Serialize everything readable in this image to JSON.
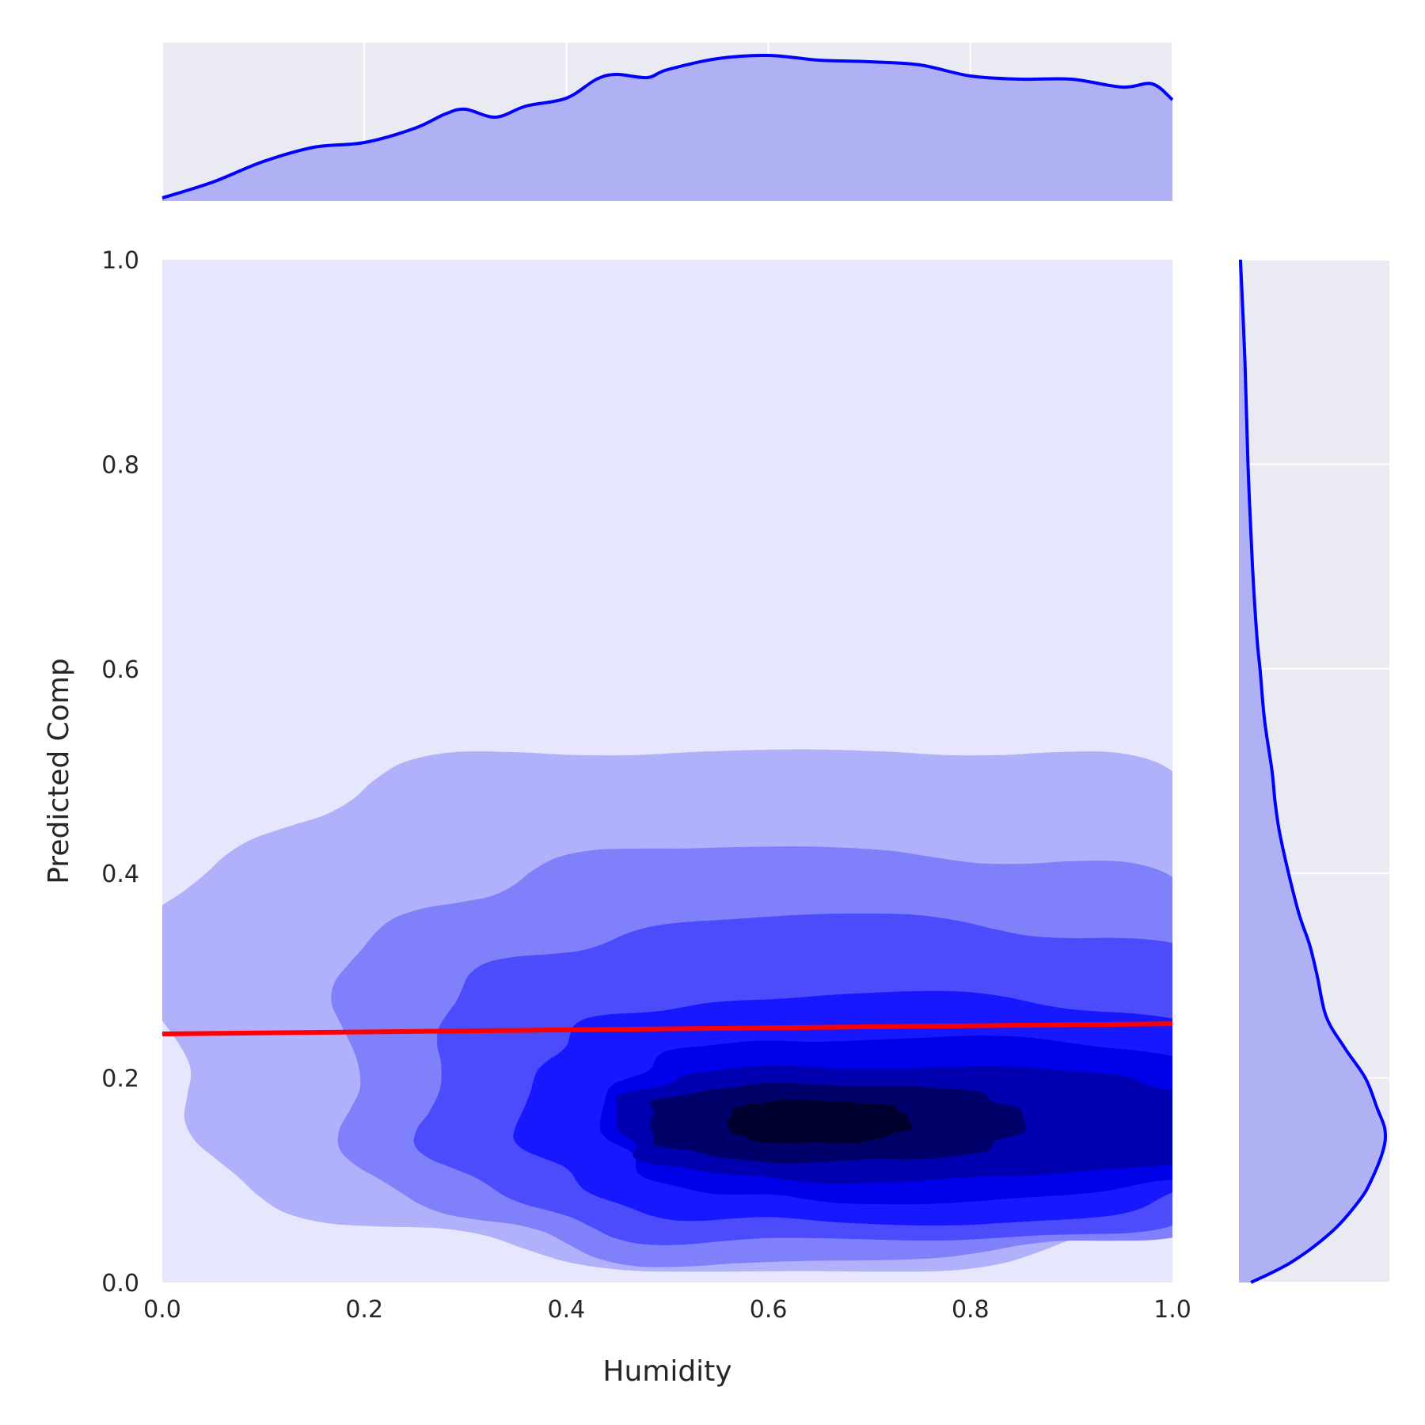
{
  "chart_data": {
    "type": "kde-jointplot",
    "xlabel": "Humidity",
    "ylabel": "Predicted Comp",
    "xlim": [
      0.0,
      1.0
    ],
    "ylim": [
      0.0,
      1.0
    ],
    "x_ticks": [
      "0.0",
      "0.2",
      "0.4",
      "0.6",
      "0.8",
      "1.0"
    ],
    "y_ticks": [
      "0.0",
      "0.2",
      "0.4",
      "0.6",
      "0.8",
      "1.0"
    ],
    "grid": true,
    "colors": {
      "background": "#eaeaf2",
      "kde_lowest": "#e6e6fc",
      "line": "#0000ff",
      "regression": "#ff0000",
      "marginal_fill": "#b0b0f4",
      "levels": [
        "#b0b0fb",
        "#8080fb",
        "#4c4cfd",
        "#1818ff",
        "#0000e8",
        "#0000b0",
        "#00006a",
        "#000030"
      ]
    },
    "regression_line": {
      "x": [
        0.0,
        1.0
      ],
      "y": [
        0.243,
        0.253
      ]
    },
    "density_peak": {
      "x": 0.62,
      "y": 0.155
    },
    "contour_levels": [
      {
        "center": [
          0.63,
          0.27
        ],
        "rx": [
          0.64,
          0.58
        ],
        "ry": [
          0.255,
          0.255
        ]
      },
      {
        "center": [
          0.64,
          0.22
        ],
        "rx": [
          0.47,
          0.51
        ],
        "ry": [
          0.2,
          0.205
        ]
      },
      {
        "center": [
          0.66,
          0.19
        ],
        "rx": [
          0.4,
          0.49
        ],
        "ry": [
          0.152,
          0.165
        ]
      },
      {
        "center": [
          0.67,
          0.17
        ],
        "rx": [
          0.31,
          0.46
        ],
        "ry": [
          0.113,
          0.11
        ]
      },
      {
        "center": [
          0.68,
          0.162
        ],
        "rx": [
          0.24,
          0.44
        ],
        "ry": [
          0.082,
          0.077
        ]
      },
      {
        "center": [
          0.68,
          0.158
        ],
        "rx": [
          0.23,
          0.37
        ],
        "ry": [
          0.058,
          0.054
        ]
      },
      {
        "center": [
          0.65,
          0.158
        ],
        "rx": [
          0.17,
          0.2
        ],
        "ry": [
          0.04,
          0.036
        ]
      },
      {
        "center": [
          0.63,
          0.158
        ],
        "rx": [
          0.07,
          0.11
        ],
        "ry": [
          0.022,
          0.02
        ]
      }
    ],
    "marginal_x": {
      "x": [
        0.0,
        0.05,
        0.1,
        0.15,
        0.2,
        0.25,
        0.28,
        0.3,
        0.33,
        0.36,
        0.4,
        0.43,
        0.45,
        0.48,
        0.5,
        0.55,
        0.6,
        0.65,
        0.7,
        0.75,
        0.8,
        0.85,
        0.9,
        0.95,
        0.98,
        1.0
      ],
      "y": [
        0.02,
        0.12,
        0.25,
        0.34,
        0.37,
        0.46,
        0.55,
        0.58,
        0.53,
        0.6,
        0.65,
        0.77,
        0.8,
        0.78,
        0.83,
        0.9,
        0.92,
        0.89,
        0.88,
        0.86,
        0.79,
        0.77,
        0.77,
        0.72,
        0.74,
        0.64
      ]
    },
    "marginal_y": {
      "y": [
        0.0,
        0.02,
        0.05,
        0.08,
        0.1,
        0.13,
        0.15,
        0.17,
        0.2,
        0.23,
        0.26,
        0.3,
        0.33,
        0.36,
        0.4,
        0.44,
        0.47,
        0.5,
        0.55,
        0.6,
        0.63,
        0.7,
        0.8,
        0.9,
        1.0
      ],
      "density": [
        0.08,
        0.35,
        0.62,
        0.8,
        0.88,
        0.96,
        0.97,
        0.92,
        0.84,
        0.7,
        0.58,
        0.52,
        0.47,
        0.4,
        0.33,
        0.27,
        0.24,
        0.22,
        0.17,
        0.14,
        0.12,
        0.09,
        0.06,
        0.04,
        0.01
      ]
    }
  }
}
